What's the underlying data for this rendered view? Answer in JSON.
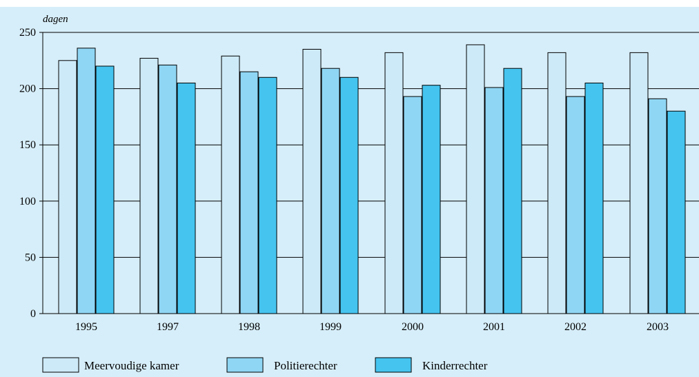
{
  "chart_data": {
    "type": "bar",
    "ylabel": "dagen",
    "ylim": [
      0,
      250
    ],
    "yticks": [
      0,
      50,
      100,
      150,
      200,
      250
    ],
    "grid": true,
    "legend_position": "bottom",
    "categories": [
      "1995",
      "1997",
      "1998",
      "1999",
      "2000",
      "2001",
      "2002",
      "2003"
    ],
    "series": [
      {
        "name": "Meervoudige kamer",
        "color": "#cdeaf8",
        "values": [
          225,
          227,
          229,
          235,
          232,
          239,
          232,
          232
        ]
      },
      {
        "name": "Politierechter",
        "color": "#8fd6f4",
        "values": [
          236,
          221,
          215,
          218,
          193,
          201,
          193,
          191
        ]
      },
      {
        "name": "Kinderrechter",
        "color": "#45c4ef",
        "values": [
          220,
          205,
          210,
          210,
          203,
          218,
          205,
          180
        ]
      }
    ]
  },
  "colors": {
    "background": "#d6eef9",
    "plot_area": "#d6eef9",
    "gridline": "#000000",
    "bar_border": "#000000"
  }
}
